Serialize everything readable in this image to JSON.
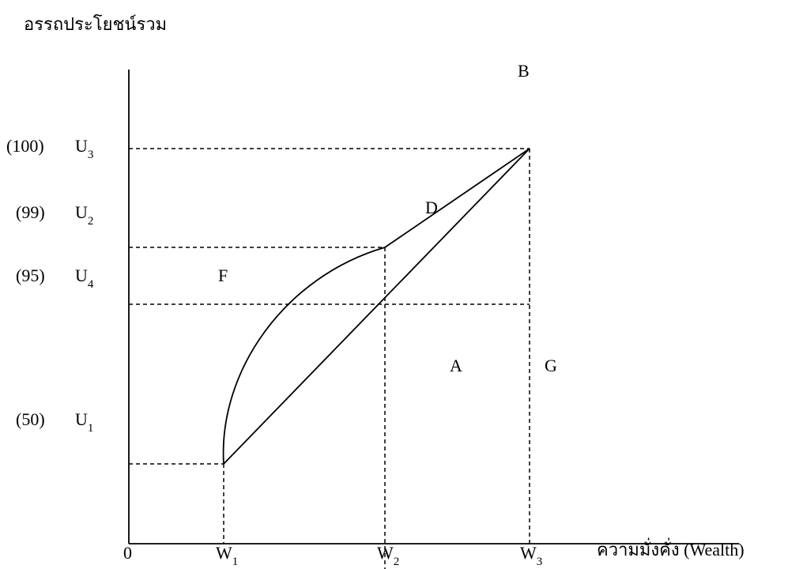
{
  "title": "อรรถประโยชน์รวม",
  "x_axis": {
    "label": "ความมั่งคั่ง (Wealth)",
    "origin": "0",
    "ticks": [
      {
        "symbol": "W",
        "sub": "1"
      },
      {
        "symbol": "W",
        "sub": "2"
      },
      {
        "symbol": "W",
        "sub": "3"
      }
    ]
  },
  "y_axis": {
    "ticks": [
      {
        "value": "(100)",
        "symbol": "U",
        "sub": "3"
      },
      {
        "value": "(99)",
        "symbol": "U",
        "sub": "2"
      },
      {
        "value": "(95)",
        "symbol": "U",
        "sub": "4"
      },
      {
        "value": "(50)",
        "symbol": "U",
        "sub": "1"
      }
    ]
  },
  "points": [
    "B",
    "D",
    "F",
    "A",
    "G"
  ]
}
